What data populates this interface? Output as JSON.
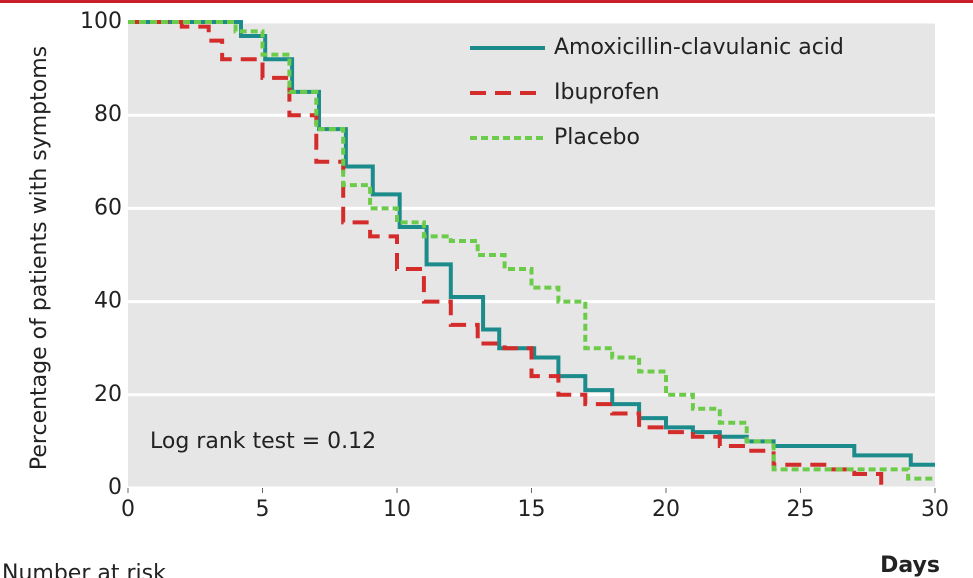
{
  "chart_data": {
    "type": "line",
    "step": true,
    "ylabel": "Percentage of patients with symptoms",
    "xlabel": "Days",
    "annotation": "Log rank test = 0.12",
    "footer": "Number at risk",
    "xlim": [
      0,
      30
    ],
    "xticks": [
      0,
      5,
      10,
      15,
      20,
      25,
      30
    ],
    "ylim": [
      0,
      100
    ],
    "yticks": [
      0,
      20,
      40,
      60,
      80,
      100
    ],
    "grid": true,
    "legend": "upper right",
    "series": [
      {
        "name": "Amoxicillin-clavulanic acid",
        "color": "#1b8b8b",
        "linestyle": "solid",
        "x": [
          0,
          4.2,
          5.1,
          6.1,
          7.1,
          8.1,
          9.1,
          10.1,
          11.1,
          12,
          13.2,
          13.8,
          15.1,
          16,
          17,
          18,
          19,
          20,
          21,
          22,
          23,
          24,
          27,
          29.1,
          30
        ],
        "values": [
          100,
          97,
          92,
          85,
          77,
          69,
          63,
          56,
          48,
          41,
          34,
          30,
          28,
          24,
          21,
          18,
          15,
          13,
          12,
          11,
          10,
          9,
          7,
          5,
          5
        ]
      },
      {
        "name": "Ibuprofen",
        "color": "#d42b2b",
        "linestyle": "dashed",
        "x": [
          0,
          2,
          3,
          3.5,
          5,
          6,
          7,
          8,
          9,
          10,
          11,
          12,
          13,
          14,
          15,
          16,
          17,
          18,
          19,
          20,
          21,
          22,
          23,
          24,
          26,
          27,
          28
        ],
        "values": [
          100,
          99,
          96,
          92,
          88,
          80,
          70,
          57,
          54,
          47,
          40,
          35,
          31,
          30,
          24,
          20,
          18,
          16,
          13,
          12,
          11,
          9,
          8,
          5,
          4,
          3,
          0
        ]
      },
      {
        "name": "Placebo",
        "color": "#6ccc4a",
        "linestyle": "dotted",
        "x": [
          0,
          4,
          5,
          6,
          7,
          8,
          9,
          10,
          11,
          12,
          13,
          14,
          15,
          16,
          17,
          18,
          19,
          20,
          21,
          22,
          23,
          24,
          29,
          30
        ],
        "values": [
          100,
          98,
          93,
          85,
          77,
          65,
          60,
          57,
          54,
          53,
          50,
          47,
          43,
          40,
          30,
          28,
          25,
          20,
          17,
          14,
          10,
          4,
          2,
          2
        ]
      }
    ]
  }
}
